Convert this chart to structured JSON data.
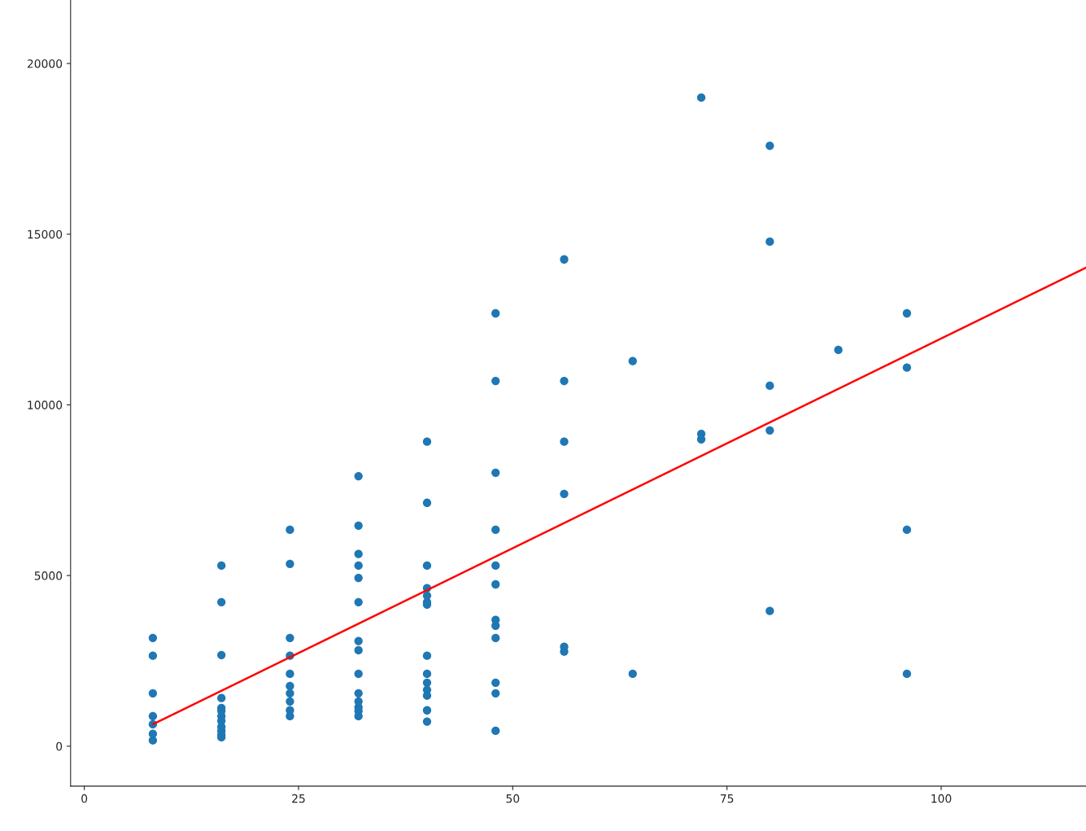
{
  "chart_data": {
    "type": "scatter",
    "xlim": [
      -1.6,
      116.9
    ],
    "ylim": [
      -1170,
      21860
    ],
    "xticks": [
      0,
      25,
      50,
      75,
      100
    ],
    "yticks": [
      0,
      5000,
      10000,
      15000,
      20000
    ],
    "grid": false,
    "marker": "circle",
    "series": [
      {
        "color": "#1f77b4",
        "x": [
          8,
          8,
          8,
          8,
          8,
          8,
          8,
          16,
          16,
          16,
          16,
          16,
          16,
          16,
          16,
          16,
          16,
          16,
          16,
          24,
          24,
          24,
          24,
          24,
          24,
          24,
          24,
          24,
          24,
          32,
          32,
          32,
          32,
          32,
          32,
          32,
          32,
          32,
          32,
          32,
          32,
          32,
          32,
          40,
          40,
          40,
          40,
          40,
          40,
          40,
          40,
          40,
          40,
          40,
          40,
          40,
          40,
          48,
          48,
          48,
          48,
          48,
          48,
          48,
          48,
          48,
          48,
          48,
          48,
          56,
          56,
          56,
          56,
          56,
          56,
          64,
          64,
          72,
          72,
          72,
          80,
          80,
          80,
          80,
          80,
          88,
          96,
          96,
          96,
          96
        ],
        "values": [
          3170,
          2650,
          1550,
          880,
          640,
          360,
          170,
          5290,
          4220,
          2670,
          1410,
          1120,
          1030,
          880,
          740,
          570,
          450,
          330,
          260,
          6340,
          5340,
          3170,
          2650,
          2120,
          1760,
          1550,
          1310,
          1050,
          880,
          7910,
          6460,
          5630,
          5290,
          4930,
          4220,
          3080,
          2810,
          2120,
          1550,
          1310,
          1140,
          1030,
          880,
          8920,
          7130,
          5290,
          4630,
          4410,
          4220,
          4150,
          2650,
          2120,
          1860,
          1650,
          1480,
          1050,
          720,
          12680,
          10700,
          8010,
          6340,
          5290,
          4740,
          3700,
          3530,
          3170,
          1860,
          1550,
          450,
          14260,
          10700,
          8920,
          7390,
          2910,
          2770,
          11280,
          2120,
          19000,
          9150,
          8990,
          17590,
          14780,
          10560,
          9250,
          3960,
          11610,
          12680,
          11090,
          6340,
          2120
        ]
      },
      {
        "type": "line",
        "color": "#ff0000",
        "marker": "none",
        "line_style": "solid",
        "x": [
          8,
          116.9
        ],
        "values": [
          640,
          14020
        ]
      }
    ]
  }
}
